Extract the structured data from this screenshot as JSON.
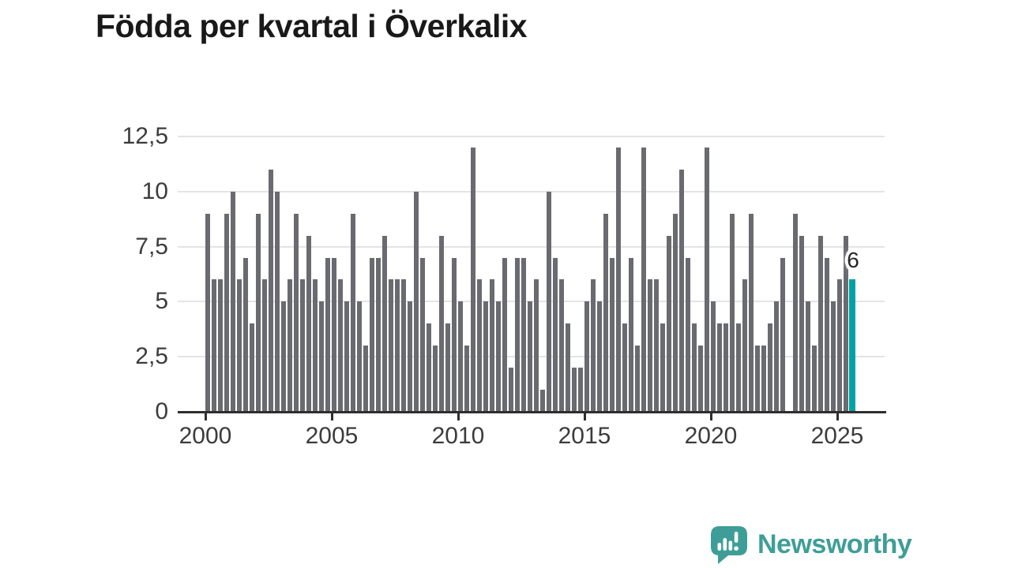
{
  "title": "Födda per kvartal i Överkalix",
  "footer": {
    "brand": "Newsworthy"
  },
  "colors": {
    "bar": "#6a6a71",
    "highlight": "#00a2a3",
    "gridline": "#e4e4e7",
    "axis": "#2e2e2e",
    "axis_text": "#3c3c3c",
    "title_text": "#191919",
    "logo": "#3e9e97"
  },
  "chart_data": {
    "type": "bar",
    "title": "Födda per kvartal i Överkalix",
    "x_unit": "quarter",
    "x_start": "2000 Q1",
    "x_end": "2025 Q3",
    "values": [
      9,
      6,
      6,
      9,
      10,
      6,
      7,
      4,
      9,
      6,
      11,
      10,
      5,
      6,
      9,
      6,
      8,
      6,
      5,
      7,
      7,
      6,
      5,
      9,
      5,
      3,
      7,
      7,
      8,
      6,
      6,
      6,
      5,
      10,
      7,
      4,
      3,
      8,
      4,
      7,
      5,
      3,
      12,
      6,
      5,
      6,
      5,
      7,
      2,
      7,
      7,
      5,
      6,
      1,
      10,
      7,
      6,
      4,
      2,
      2,
      5,
      6,
      5,
      9,
      7,
      12,
      4,
      7,
      3,
      12,
      6,
      6,
      4,
      8,
      9,
      11,
      7,
      4,
      3,
      12,
      5,
      4,
      4,
      9,
      4,
      6,
      9,
      3,
      3,
      4,
      5,
      7,
      0,
      9,
      8,
      5,
      3,
      8,
      7,
      5,
      6,
      8,
      6
    ],
    "highlight": {
      "index": 102,
      "quarter": "2025 Q3",
      "value": 6,
      "label": "6",
      "color": "#00a2a3"
    },
    "bar_color": "#6a6a71",
    "ylim": [
      0,
      12.5
    ],
    "grid": "horizontal",
    "yticks": [
      {
        "value": 12.5,
        "label": "12,5"
      },
      {
        "value": 10,
        "label": "10"
      },
      {
        "value": 7.5,
        "label": "7,5"
      },
      {
        "value": 5,
        "label": "5"
      },
      {
        "value": 2.5,
        "label": "2,5"
      },
      {
        "value": 0,
        "label": "0"
      }
    ],
    "xticks": [
      {
        "year": 2000,
        "label": "2000"
      },
      {
        "year": 2005,
        "label": "2005"
      },
      {
        "year": 2010,
        "label": "2010"
      },
      {
        "year": 2015,
        "label": "2015"
      },
      {
        "year": 2020,
        "label": "2020"
      },
      {
        "year": 2025,
        "label": "2025"
      }
    ]
  }
}
